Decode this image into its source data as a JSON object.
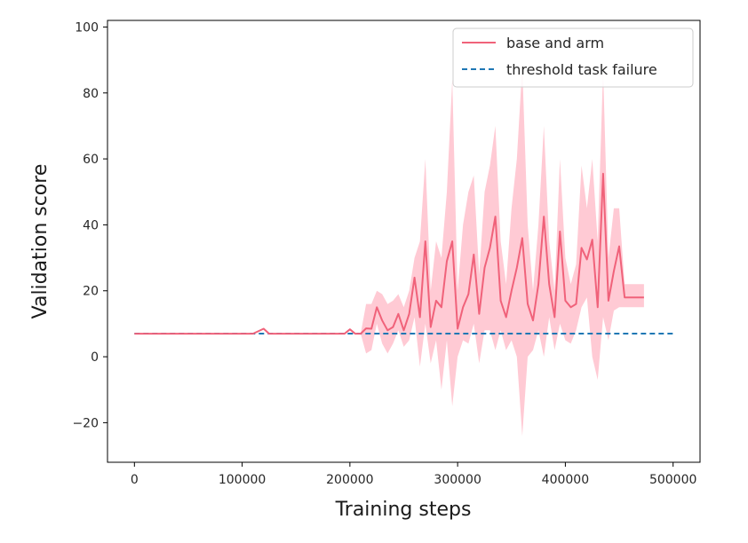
{
  "chart_data": {
    "type": "line",
    "title": "",
    "xlabel": "Training steps",
    "ylabel": "Validation score",
    "xlim": [
      -25000,
      525000
    ],
    "ylim": [
      -32,
      102
    ],
    "x_ticks": [
      0,
      100000,
      200000,
      300000,
      400000,
      500000
    ],
    "x_tick_labels": [
      "0",
      "100000",
      "200000",
      "300000",
      "400000",
      "500000"
    ],
    "y_ticks": [
      -20,
      0,
      20,
      40,
      60,
      80,
      100
    ],
    "y_tick_labels": [
      "−20",
      "0",
      "20",
      "40",
      "60",
      "80",
      "100"
    ],
    "grid": false,
    "legend_position": "top-right",
    "colors": {
      "series": "#f0627a",
      "band": "#ffcad4",
      "threshold": "#1f77b4"
    },
    "series": [
      {
        "name": "base and arm",
        "x": [
          0,
          30000,
          60000,
          90000,
          110000,
          120000,
          125000,
          150000,
          175000,
          195000,
          200000,
          205000,
          210000,
          215000,
          220000,
          225000,
          230000,
          235000,
          240000,
          245000,
          250000,
          255000,
          260000,
          265000,
          270000,
          275000,
          280000,
          285000,
          290000,
          295000,
          300000,
          305000,
          310000,
          315000,
          320000,
          325000,
          330000,
          335000,
          340000,
          345000,
          350000,
          355000,
          360000,
          365000,
          370000,
          375000,
          380000,
          385000,
          390000,
          395000,
          400000,
          405000,
          410000,
          415000,
          420000,
          425000,
          430000,
          435000,
          440000,
          445000,
          450000,
          455000,
          460000,
          465000,
          470000,
          473000
        ],
        "y": [
          7,
          7,
          7,
          7,
          7,
          8.5,
          7,
          7,
          7,
          7,
          8.3,
          7,
          7,
          8.6,
          8.5,
          15,
          11,
          8,
          9,
          13,
          8,
          13,
          24,
          12,
          35,
          9,
          17,
          15,
          29,
          35,
          8.5,
          15,
          19,
          31,
          13,
          27,
          33,
          42.5,
          17,
          12,
          20,
          27,
          36,
          16,
          11,
          22,
          42.5,
          22,
          12,
          38,
          17,
          15,
          16,
          33,
          29.5,
          35.5,
          15,
          55.5,
          17,
          26,
          33.5,
          18,
          18,
          18,
          18,
          18
        ],
        "lower": [
          7,
          7,
          7,
          7,
          7,
          8.5,
          7,
          7,
          7,
          7,
          8.3,
          7,
          7,
          1,
          2,
          10,
          4,
          1,
          4,
          8,
          3,
          5,
          12,
          -3,
          10,
          -2,
          5,
          -10,
          5,
          -15,
          0,
          5,
          4,
          10,
          -2,
          8,
          8,
          2,
          8,
          2,
          5,
          0,
          -24,
          0,
          2,
          8,
          0,
          12,
          2,
          10,
          5,
          4,
          8,
          15,
          18,
          0,
          -7,
          12,
          5,
          14,
          15,
          15,
          15,
          15,
          15,
          15
        ],
        "upper": [
          7,
          7,
          7,
          7,
          7,
          8.5,
          7,
          7,
          7,
          7,
          8.3,
          7,
          7,
          16,
          16,
          20,
          19,
          16,
          17,
          19,
          15,
          20,
          30,
          35,
          60,
          20,
          35,
          30,
          50,
          84,
          20,
          40,
          50,
          55,
          25,
          50,
          58,
          70,
          35,
          22,
          45,
          60,
          88,
          40,
          20,
          40,
          70,
          35,
          20,
          60,
          30,
          22,
          28,
          58,
          45,
          60,
          35,
          87,
          30,
          45,
          45,
          22,
          22,
          22,
          22,
          22
        ]
      },
      {
        "name": "threshold task failure",
        "x": [
          0,
          500000
        ],
        "y": [
          7,
          7
        ]
      }
    ]
  }
}
